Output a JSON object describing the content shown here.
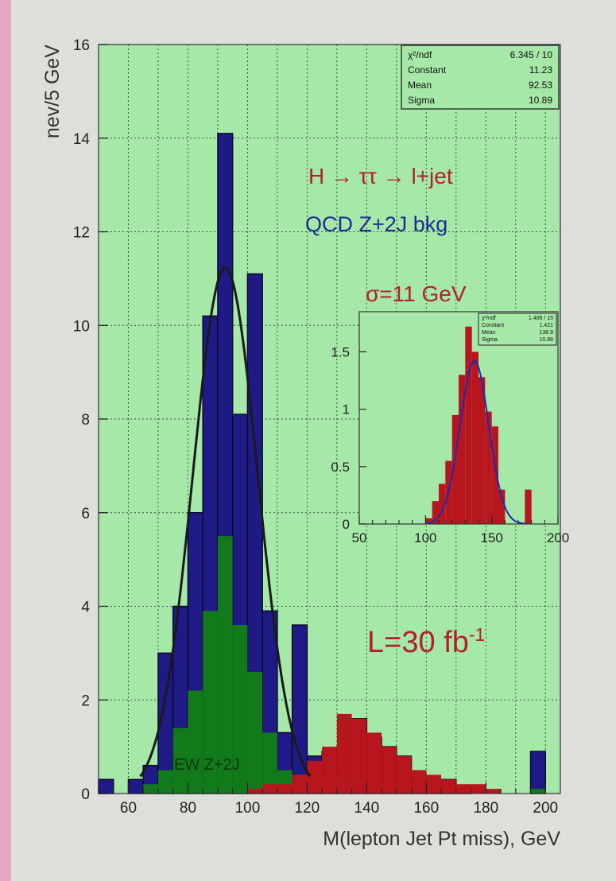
{
  "colors": {
    "plot_bg": "#a6e8a8",
    "qcd_blue": "#1f1a86",
    "ew_green": "#137a1b",
    "signal_red": "#b8161e",
    "fit_line": "#1a1a1a",
    "inset_fit": "#1b2bb5"
  },
  "chart_data": [
    {
      "type": "histogram",
      "xlabel": "M(lepton Jet Pt miss), GeV",
      "ylabel": "nev/5 GeV",
      "xlim": [
        50,
        205
      ],
      "ylim": [
        0,
        16
      ],
      "x_ticks": [
        60,
        80,
        100,
        120,
        140,
        160,
        180,
        200
      ],
      "y_ticks": [
        0,
        2,
        4,
        6,
        8,
        10,
        12,
        14,
        16
      ],
      "grid": true,
      "bin_width": 5,
      "bin_edges_start": 50,
      "series": [
        {
          "name": "QCD Z+2J bkg",
          "values": [
            0.3,
            0.0,
            0.3,
            0.6,
            3.0,
            4.0,
            6.0,
            10.2,
            14.1,
            8.1,
            11.1,
            3.9,
            1.3,
            3.6,
            0.8,
            0.9,
            1.0,
            1.6,
            1.2,
            1.0,
            0.8,
            0.4,
            0.3,
            0.3,
            0.1,
            0.0,
            0.0,
            0.0,
            0.0,
            0.9
          ]
        },
        {
          "name": "EW Z+2J",
          "values": [
            0.0,
            0.0,
            0.0,
            0.2,
            0.5,
            1.4,
            2.2,
            3.9,
            5.5,
            3.6,
            2.6,
            1.3,
            0.5,
            0.4,
            0.3,
            0.4,
            0.3,
            0.2,
            0.2,
            0.1,
            0.1,
            0.1,
            0.1,
            0.1,
            0.1,
            0.0,
            0.0,
            0.0,
            0.0,
            0.1
          ]
        },
        {
          "name": "H → ττ → l+jet",
          "values": [
            0.0,
            0.0,
            0.0,
            0.0,
            0.0,
            0.0,
            0.0,
            0.0,
            0.0,
            0.0,
            0.1,
            0.2,
            0.2,
            0.4,
            0.7,
            1.0,
            1.7,
            1.6,
            1.3,
            1.0,
            0.8,
            0.5,
            0.4,
            0.3,
            0.2,
            0.2,
            0.1,
            0.0,
            0.0,
            0.0
          ]
        }
      ],
      "fit": {
        "function": "gaussian",
        "constant": 11.23,
        "mean": 92.53,
        "sigma": 10.89
      },
      "stats_box": [
        {
          "label": "χ²/ndf",
          "value": "6.345   /   10"
        },
        {
          "label": "Constant",
          "value": "11.23"
        },
        {
          "label": "Mean",
          "value": "92.53"
        },
        {
          "label": "Sigma",
          "value": "10.89"
        }
      ]
    },
    {
      "type": "histogram",
      "xlabel": "",
      "ylabel": "",
      "xlim": [
        50,
        200
      ],
      "ylim": [
        0,
        1.85
      ],
      "x_ticks": [
        50,
        100,
        150,
        200
      ],
      "y_ticks": [
        0,
        0.5,
        1,
        1.5
      ],
      "y_tick_labels": [
        "0",
        "0.5",
        "1",
        "1.5"
      ],
      "grid": false,
      "bin_width": 5,
      "bin_edges_start": 100,
      "series": [
        {
          "name": "",
          "values": [
            0.05,
            0.2,
            0.35,
            0.55,
            0.95,
            1.3,
            1.72,
            1.5,
            1.28,
            0.98,
            0.85,
            0.3,
            0.0,
            0.0,
            0.0,
            0.3
          ]
        }
      ],
      "fit": {
        "function": "gaussian",
        "constant": 1.421,
        "mean": 136.9,
        "sigma": 10.88
      },
      "stats_box": [
        {
          "label": "χ²/ndf",
          "value": "1.406   /   15"
        },
        {
          "label": "Constant",
          "value": "1.421"
        },
        {
          "label": "Mean",
          "value": "136.9"
        },
        {
          "label": "Sigma",
          "value": "10.88"
        }
      ]
    }
  ],
  "annotations": {
    "process": "H → ττ → l+jet",
    "background": "QCD Z+2J bkg",
    "resolution": "σ=11 GeV",
    "luminosity": "L=30 fb",
    "luminosity_sup": "-1",
    "ew_label": "EW Z+2J"
  }
}
